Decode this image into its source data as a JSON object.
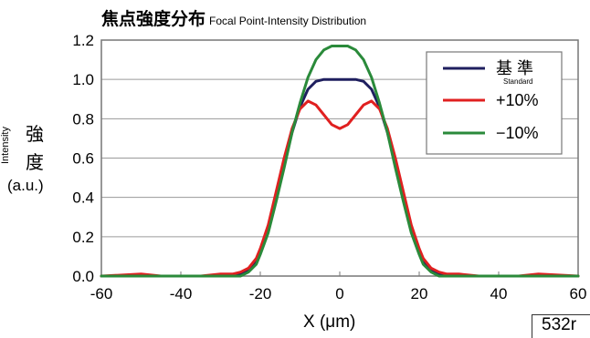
{
  "chart_data": {
    "type": "line",
    "title": "焦点強度分布",
    "subtitle": "Focal Point-Intensity Distribution",
    "xlabel": "X (μm)",
    "ylabel_en": "Intensity",
    "ylabel_jp_1": "強",
    "ylabel_jp_2": "度",
    "ylabel_unit": "(a.u.)",
    "xlim": [
      -60,
      60
    ],
    "ylim": [
      0,
      1.2
    ],
    "x_ticks": [
      "-60",
      "-40",
      "-20",
      "0",
      "20",
      "40",
      "60"
    ],
    "y_ticks": [
      "0.0",
      "0.2",
      "0.4",
      "0.6",
      "0.8",
      "1.0",
      "1.2"
    ],
    "grid": "horizontal",
    "legend_position": "top-right",
    "x": [
      -60,
      -50,
      -45,
      -40,
      -35,
      -30,
      -27,
      -25,
      -23,
      -21,
      -20,
      -18,
      -16,
      -14,
      -12,
      -10,
      -8,
      -6,
      -4,
      -2,
      0,
      2,
      4,
      6,
      8,
      10,
      12,
      14,
      16,
      18,
      20,
      21,
      23,
      25,
      27,
      30,
      35,
      40,
      45,
      50,
      60
    ],
    "series": [
      {
        "name": "基 準",
        "name_sub": "Standard",
        "color": "#1f1f5f",
        "values": [
          0.0,
          0.0,
          0.0,
          0.0,
          0.0,
          0.0,
          0.0,
          0.01,
          0.03,
          0.08,
          0.13,
          0.24,
          0.4,
          0.57,
          0.73,
          0.86,
          0.95,
          0.99,
          1.0,
          1.0,
          1.0,
          1.0,
          1.0,
          0.99,
          0.95,
          0.86,
          0.73,
          0.57,
          0.4,
          0.24,
          0.13,
          0.08,
          0.03,
          0.01,
          0.0,
          0.0,
          0.0,
          0.0,
          0.0,
          0.0,
          0.0
        ]
      },
      {
        "name": "+10%",
        "color": "#e02020",
        "values": [
          0.0,
          0.01,
          0.0,
          0.0,
          0.0,
          0.01,
          0.01,
          0.02,
          0.04,
          0.09,
          0.14,
          0.26,
          0.43,
          0.6,
          0.75,
          0.85,
          0.89,
          0.87,
          0.82,
          0.77,
          0.75,
          0.77,
          0.82,
          0.87,
          0.89,
          0.85,
          0.75,
          0.6,
          0.43,
          0.26,
          0.14,
          0.09,
          0.04,
          0.02,
          0.01,
          0.01,
          0.0,
          0.0,
          0.0,
          0.01,
          0.0
        ]
      },
      {
        "name": "−10%",
        "color": "#2a8a3a",
        "values": [
          0.0,
          0.0,
          0.0,
          0.0,
          0.0,
          0.0,
          0.0,
          0.0,
          0.02,
          0.06,
          0.11,
          0.22,
          0.38,
          0.55,
          0.73,
          0.88,
          1.01,
          1.1,
          1.15,
          1.17,
          1.17,
          1.17,
          1.15,
          1.1,
          1.01,
          0.88,
          0.73,
          0.55,
          0.38,
          0.22,
          0.11,
          0.06,
          0.02,
          0.0,
          0.0,
          0.0,
          0.0,
          0.0,
          0.0,
          0.0,
          0.0
        ]
      }
    ]
  },
  "wavelength_label": "532r"
}
